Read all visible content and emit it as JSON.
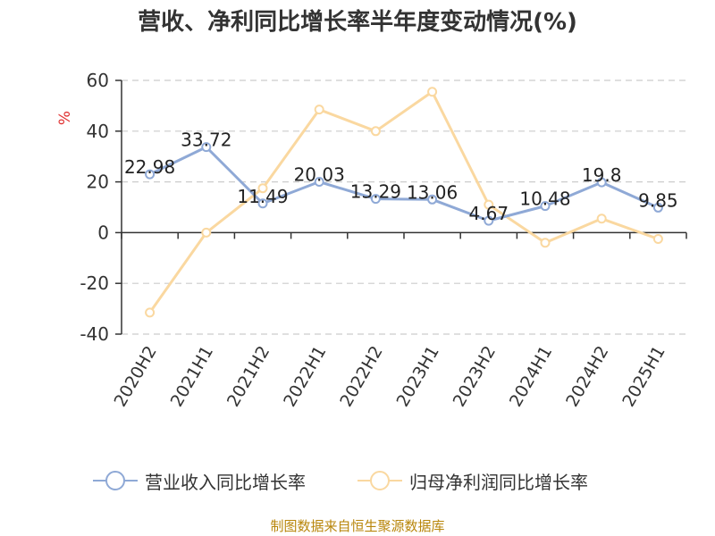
{
  "title": "营收、净利同比增长率半年度变动情况(%)",
  "source": "制图数据来自恒生聚源数据库",
  "chart_data": {
    "type": "line",
    "title": "营收、净利同比增长率半年度变动情况(%)",
    "ylabel": "%",
    "ylim": [
      -40,
      60
    ],
    "yticks": [
      60,
      40,
      20,
      0,
      -20,
      -40
    ],
    "grid": true,
    "legend_position": "bottom",
    "categories": [
      "2020H2",
      "2021H1",
      "2021H2",
      "2022H1",
      "2022H2",
      "2023H1",
      "2023H2",
      "2024H1",
      "2024H2",
      "2025H1"
    ],
    "series": [
      {
        "name": "营业收入同比增长率",
        "color": "#8fa9d6",
        "values": [
          22.98,
          33.72,
          11.49,
          20.03,
          13.29,
          13.06,
          4.67,
          10.48,
          19.8,
          9.85
        ],
        "labels": [
          "22.98",
          "33.72",
          "11.49",
          "20.03",
          "13.29",
          "13.06",
          "4.67",
          "10.48",
          "19.8",
          "9.85"
        ]
      },
      {
        "name": "归母净利润同比增长率",
        "color": "#fad8a0",
        "values": [
          -31.5,
          0,
          17.5,
          48.5,
          40,
          55.5,
          11,
          -4,
          5.5,
          -2.5
        ]
      }
    ]
  }
}
